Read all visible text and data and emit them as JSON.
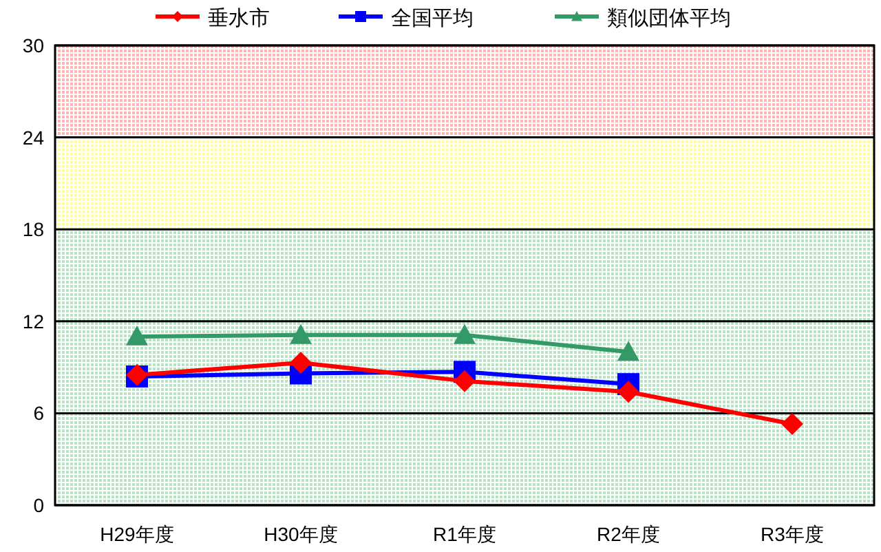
{
  "chart_data": {
    "type": "line",
    "categories": [
      "H29年度",
      "H30年度",
      "R1年度",
      "R2年度",
      "R3年度"
    ],
    "series": [
      {
        "name": "垂水市",
        "color": "#ff0000",
        "marker": "diamond",
        "values": [
          8.5,
          9.3,
          8.1,
          7.4,
          5.3
        ]
      },
      {
        "name": "全国平均",
        "color": "#0000ff",
        "marker": "square",
        "values": [
          8.4,
          8.6,
          8.7,
          7.9,
          null
        ]
      },
      {
        "name": "類似団体平均",
        "color": "#339966",
        "marker": "triangle",
        "values": [
          11.0,
          11.1,
          11.1,
          10.0,
          null
        ]
      }
    ],
    "ylim": [
      0,
      30
    ],
    "yticks": [
      0,
      6,
      12,
      18,
      24,
      30
    ],
    "grid": "y",
    "legend": "top",
    "bands": [
      {
        "axis": "y",
        "from": 0,
        "to": 18,
        "color": "#b6e3c4"
      },
      {
        "axis": "y",
        "from": 18,
        "to": 24,
        "color": "#ffff9e"
      },
      {
        "axis": "y",
        "from": 24,
        "to": 30,
        "color": "#ffb3b3"
      }
    ]
  }
}
